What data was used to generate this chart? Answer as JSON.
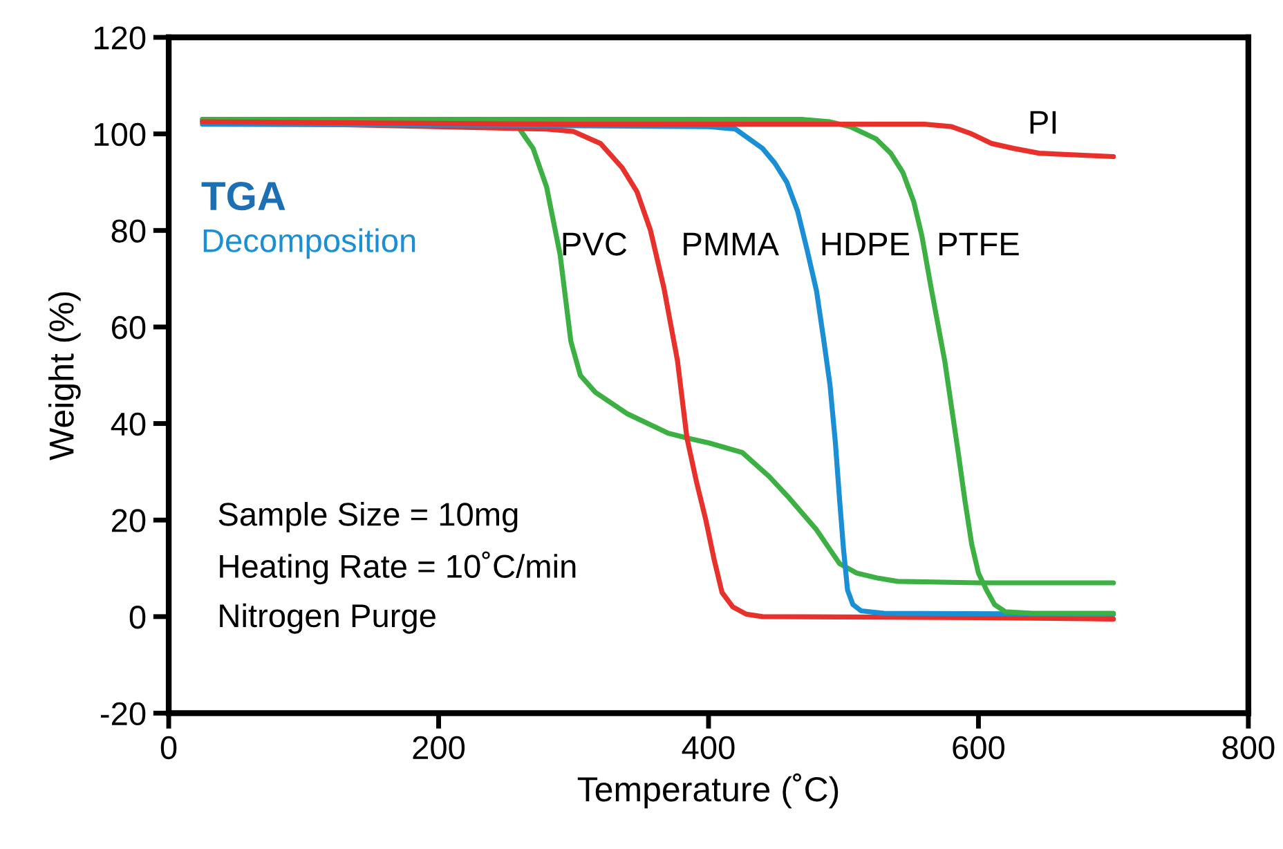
{
  "chart_data": {
    "type": "line",
    "xlabel": "Temperature (˚C)",
    "ylabel": "Weight (%)",
    "xlim": [
      0,
      800
    ],
    "xticks": [
      0,
      200,
      400,
      600,
      800
    ],
    "ylim": [
      -20,
      120
    ],
    "yticks": [
      -20,
      0,
      20,
      40,
      60,
      80,
      100,
      120
    ],
    "grid": false,
    "legend": false,
    "marker": "none",
    "line_style": "solid",
    "annotations": [
      "TGA",
      "Decomposition",
      "Sample Size = 10mg",
      "Heating Rate = 10˚C/min",
      "Nitrogen Purge"
    ],
    "series": [
      {
        "name": "PVC",
        "color": "#3cb043",
        "x": [
          25,
          250,
          260,
          270,
          280,
          290,
          298,
          305,
          316,
          340,
          370,
          384,
          400,
          425,
          445,
          460,
          480,
          497,
          510,
          525,
          540,
          600,
          700
        ],
        "values": [
          103,
          102.5,
          101,
          97,
          89,
          75,
          57,
          50,
          46.5,
          42,
          38,
          37,
          36,
          34,
          29,
          24.5,
          18,
          11,
          9,
          8,
          7.3,
          7,
          7
        ]
      },
      {
        "name": "PMMA",
        "color": "#e8312a",
        "x": [
          25,
          150,
          280,
          300,
          320,
          336,
          347,
          357,
          367,
          377,
          384,
          391,
          398,
          404,
          410,
          418,
          428,
          440,
          600,
          700
        ],
        "values": [
          102.5,
          101.8,
          101,
          100.5,
          98,
          93,
          88,
          80,
          68,
          53,
          37,
          28,
          20,
          12,
          5,
          2,
          0.5,
          0,
          -0.2,
          -0.5
        ]
      },
      {
        "name": "HDPE",
        "color": "#1a8fd6",
        "x": [
          25,
          250,
          400,
          420,
          440,
          449,
          458,
          466,
          473,
          480,
          485,
          490,
          494,
          497,
          500,
          503,
          507,
          513,
          530,
          700
        ],
        "values": [
          102,
          101.8,
          101.5,
          101,
          97,
          94,
          90,
          84,
          76,
          67.5,
          58,
          48,
          36,
          24.6,
          14,
          5.5,
          2.5,
          1.2,
          0.7,
          0.5
        ]
      },
      {
        "name": "PTFE",
        "color": "#3cb043",
        "x": [
          25,
          470,
          490,
          505,
          524,
          535,
          544,
          552,
          558,
          565,
          575,
          585,
          590,
          595,
          600,
          606,
          612,
          620,
          640,
          700
        ],
        "values": [
          103,
          103,
          102.5,
          101.5,
          99,
          96,
          92,
          86,
          79,
          68,
          53,
          34,
          24,
          15,
          9,
          5.5,
          2.5,
          1,
          0.7,
          0.7
        ]
      },
      {
        "name": "PI",
        "color": "#e8312a",
        "x": [
          25,
          300,
          560,
          580,
          595,
          610,
          626,
          645,
          700
        ],
        "values": [
          102.5,
          102,
          102,
          101.5,
          100,
          98,
          97,
          96,
          95.3
        ]
      }
    ]
  }
}
